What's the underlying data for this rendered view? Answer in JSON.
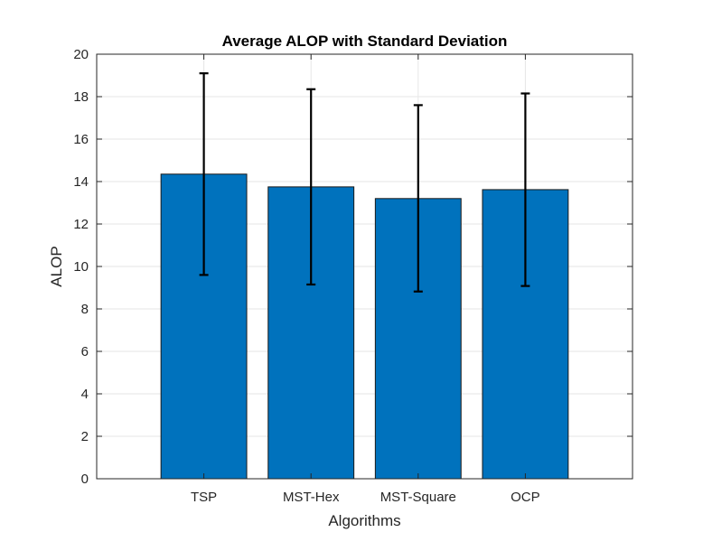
{
  "chart_data": {
    "type": "bar",
    "title": "Average ALOP with Standard Deviation",
    "xlabel": "Algorithms",
    "ylabel": "ALOP",
    "categories": [
      "TSP",
      "MST-Hex",
      "MST-Square",
      "OCP"
    ],
    "values": [
      14.35,
      13.75,
      13.2,
      13.62
    ],
    "error_low": [
      9.6,
      9.15,
      8.82,
      9.08
    ],
    "error_high": [
      19.1,
      18.35,
      17.6,
      18.15
    ],
    "ylim": [
      0,
      20
    ],
    "yticks": [
      0,
      2,
      4,
      6,
      8,
      10,
      12,
      14,
      16,
      18,
      20
    ],
    "ytick_labels": [
      "0",
      "2",
      "4",
      "6",
      "8",
      "10",
      "12",
      "14",
      "16",
      "18",
      "20"
    ],
    "grid": true,
    "colors": {
      "bar_fill": "#0072BD",
      "bar_edge": "#1a1a1a",
      "error_bar": "#000000",
      "grid": "#e6e6e6",
      "axis": "#262626"
    }
  }
}
